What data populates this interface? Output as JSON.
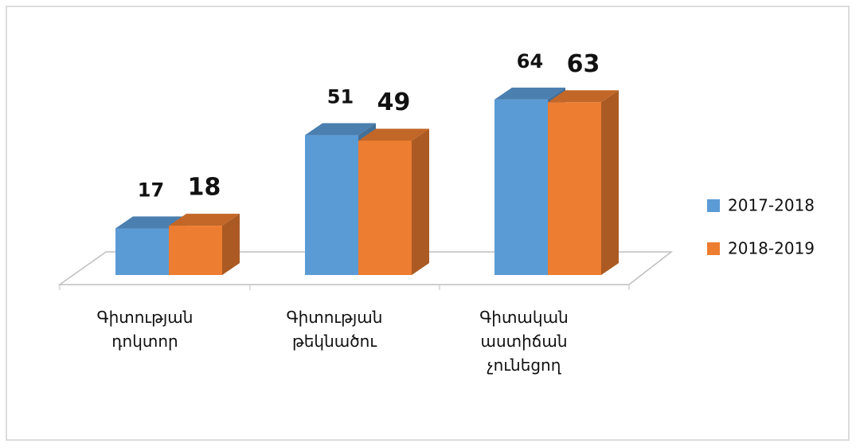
{
  "chart_data": {
    "type": "bar3d",
    "categories": [
      "Գիտության դոկտոր",
      "Գիտության թեկնածու",
      "Գիտական աստիճան չունեցող"
    ],
    "series": [
      {
        "name": "2017-2018",
        "color": "#5b9bd5",
        "values": [
          17,
          51,
          64
        ]
      },
      {
        "name": "2018-2019",
        "color": "#ed7d31",
        "values": [
          18,
          49,
          63
        ]
      }
    ],
    "ylim": [
      0,
      100
    ],
    "legend": "right"
  }
}
